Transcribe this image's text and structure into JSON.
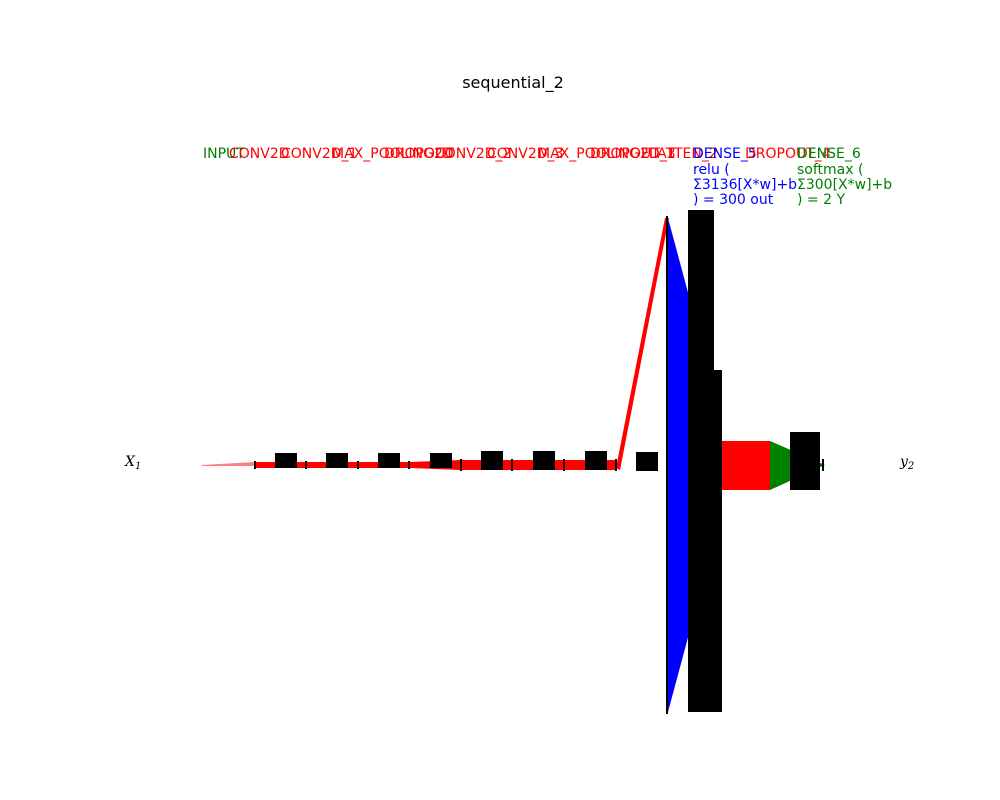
{
  "title": "sequential_2",
  "input_label": "X",
  "input_sub": "1",
  "output_label": "y",
  "output_sub": "2",
  "colors": {
    "input": "#008000",
    "hidden": "#ff0000",
    "dense_hidden": "#0000ff",
    "output": "#008000",
    "edge": "#000000"
  },
  "layers": [
    {
      "name": "INPUT",
      "color": "input"
    },
    {
      "name": "CONV2D",
      "color": "hidden"
    },
    {
      "name": "CONV2D_1",
      "color": "hidden"
    },
    {
      "name": "MAX_POOLING2D",
      "color": "hidden"
    },
    {
      "name": "DROPOUT",
      "color": "hidden"
    },
    {
      "name": "CONV2D_2",
      "color": "hidden"
    },
    {
      "name": "CONV2D_3",
      "color": "hidden"
    },
    {
      "name": "MAX_POOLING2D_1",
      "color": "hidden"
    },
    {
      "name": "DROPOUT_3",
      "color": "hidden"
    },
    {
      "name": "FLATTEN_2",
      "color": "hidden"
    },
    {
      "name": "DENSE_5",
      "color": "dense_hidden",
      "detail": [
        "relu (",
        "Σ3136[X*w]+b",
        ") = 300 out"
      ]
    },
    {
      "name": "DROPOUT_4",
      "color": "hidden"
    },
    {
      "name": "DENSE_6",
      "color": "output",
      "detail": [
        "softmax (",
        "Σ300[X*w]+b",
        ") = 2 Y"
      ]
    }
  ]
}
